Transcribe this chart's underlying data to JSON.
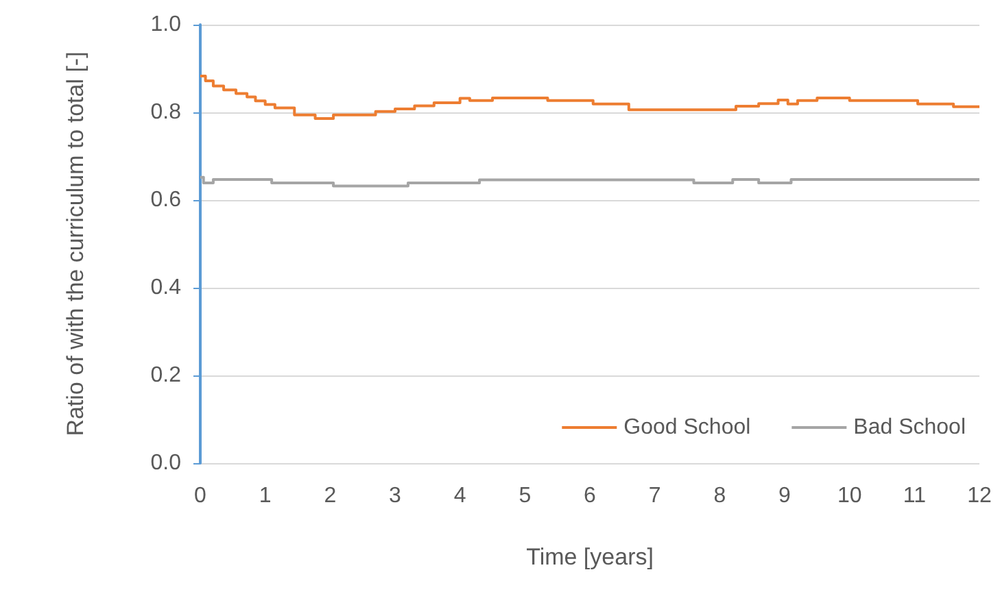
{
  "chart_data": {
    "type": "step",
    "xlabel": "Time [years]",
    "ylabel": "Ratio of with the curriculum to total [-]",
    "xlim": [
      0,
      12
    ],
    "xticks": [
      0,
      1,
      2,
      3,
      4,
      5,
      6,
      7,
      8,
      9,
      10,
      11,
      12
    ],
    "ylim": [
      0,
      1
    ],
    "yticks": [
      {
        "value": 0,
        "label": "0.0"
      },
      {
        "value": 0.2,
        "label": "0.2"
      },
      {
        "value": 0.4,
        "label": "0.4"
      },
      {
        "value": 0.6,
        "label": "0.6"
      },
      {
        "value": 0.8,
        "label": "0.8"
      },
      {
        "value": 1,
        "label": "1.0"
      }
    ],
    "grid": "y",
    "legend": "bottom right",
    "marker": "none",
    "line_style": "solid",
    "series": [
      {
        "name": "Good School",
        "color": "#ed7d31",
        "x": [
          0,
          0.08,
          0.2,
          0.36,
          0.55,
          0.72,
          0.85,
          1.0,
          1.15,
          1.45,
          1.77,
          2.05,
          2.7,
          3.0,
          3.3,
          3.6,
          4.0,
          4.15,
          4.5,
          5.35,
          6.05,
          6.6,
          8.25,
          8.6,
          8.9,
          9.05,
          9.2,
          9.5,
          10.0,
          11.05,
          11.6,
          12
        ],
        "values": [
          0.883,
          0.872,
          0.86,
          0.851,
          0.843,
          0.835,
          0.826,
          0.818,
          0.81,
          0.794,
          0.786,
          0.794,
          0.802,
          0.808,
          0.815,
          0.822,
          0.832,
          0.827,
          0.833,
          0.827,
          0.819,
          0.806,
          0.814,
          0.82,
          0.828,
          0.819,
          0.827,
          0.833,
          0.827,
          0.819,
          0.813,
          0.813
        ]
      },
      {
        "name": "Bad School",
        "color": "#a5a5a5",
        "x": [
          0,
          0.05,
          0.2,
          1.1,
          2.05,
          3.2,
          4.3,
          7.6,
          8.2,
          8.6,
          9.1,
          12
        ],
        "values": [
          0.652,
          0.639,
          0.647,
          0.639,
          0.632,
          0.639,
          0.646,
          0.639,
          0.647,
          0.639,
          0.647,
          0.647
        ]
      }
    ]
  }
}
